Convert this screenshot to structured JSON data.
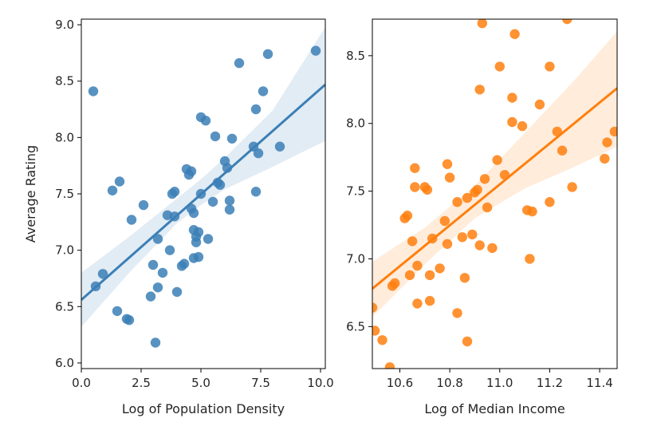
{
  "chart_data": [
    {
      "type": "scatter",
      "xlabel": "Log of Population Density",
      "ylabel": "Average Rating",
      "xlim": [
        0,
        10.2
      ],
      "ylim": [
        5.95,
        9.05
      ],
      "xticks": [
        0.0,
        2.5,
        5.0,
        7.5,
        10.0
      ],
      "xtick_labels": [
        "0.0",
        "2.5",
        "5.0",
        "7.5",
        "10.0"
      ],
      "yticks": [
        6.0,
        6.5,
        7.0,
        7.5,
        8.0,
        8.5,
        9.0
      ],
      "ytick_labels": [
        "6.0",
        "6.5",
        "7.0",
        "7.5",
        "8.0",
        "8.5",
        "9.0"
      ],
      "color": "#3b7fb6",
      "regression": {
        "x0": 0.0,
        "y0": 6.56,
        "x1": 10.2,
        "y1": 8.47
      },
      "ci_band": {
        "x": [
          0,
          2,
          4,
          5,
          6,
          8,
          10.2
        ],
        "lower": [
          6.32,
          6.8,
          7.24,
          7.4,
          7.54,
          7.74,
          7.97
        ],
        "upper": [
          6.8,
          7.12,
          7.46,
          7.63,
          7.82,
          8.24,
          8.98
        ]
      },
      "points": [
        [
          0.5,
          8.41
        ],
        [
          0.6,
          6.68
        ],
        [
          0.9,
          6.79
        ],
        [
          1.3,
          7.53
        ],
        [
          1.6,
          7.61
        ],
        [
          1.5,
          6.46
        ],
        [
          1.9,
          6.39
        ],
        [
          2.0,
          6.38
        ],
        [
          2.1,
          7.27
        ],
        [
          2.6,
          7.4
        ],
        [
          2.9,
          6.59
        ],
        [
          3.0,
          6.87
        ],
        [
          3.1,
          6.18
        ],
        [
          3.2,
          7.1
        ],
        [
          3.2,
          6.67
        ],
        [
          3.4,
          6.8
        ],
        [
          3.6,
          7.31
        ],
        [
          3.7,
          7.0
        ],
        [
          3.8,
          7.5
        ],
        [
          3.9,
          7.52
        ],
        [
          3.9,
          7.3
        ],
        [
          4.0,
          6.63
        ],
        [
          4.2,
          6.86
        ],
        [
          4.3,
          6.88
        ],
        [
          4.4,
          7.72
        ],
        [
          4.5,
          7.67
        ],
        [
          4.6,
          7.7
        ],
        [
          4.6,
          7.37
        ],
        [
          4.7,
          7.18
        ],
        [
          4.7,
          7.33
        ],
        [
          4.7,
          6.93
        ],
        [
          4.8,
          7.12
        ],
        [
          4.8,
          7.07
        ],
        [
          4.9,
          6.94
        ],
        [
          4.9,
          7.16
        ],
        [
          5.0,
          7.5
        ],
        [
          5.0,
          8.18
        ],
        [
          5.2,
          8.15
        ],
        [
          5.3,
          7.1
        ],
        [
          5.5,
          7.43
        ],
        [
          5.6,
          8.01
        ],
        [
          5.7,
          7.6
        ],
        [
          5.8,
          7.58
        ],
        [
          6.0,
          7.79
        ],
        [
          6.1,
          7.73
        ],
        [
          6.2,
          7.44
        ],
        [
          6.2,
          7.36
        ],
        [
          6.3,
          7.99
        ],
        [
          6.6,
          8.66
        ],
        [
          7.2,
          7.92
        ],
        [
          7.3,
          8.25
        ],
        [
          7.3,
          7.52
        ],
        [
          7.4,
          7.86
        ],
        [
          7.6,
          8.41
        ],
        [
          7.8,
          8.74
        ],
        [
          8.3,
          7.92
        ],
        [
          9.8,
          8.77
        ]
      ]
    },
    {
      "type": "scatter",
      "xlabel": "Log of Median Income",
      "ylabel": "",
      "xlim": [
        10.49,
        11.47
      ],
      "ylim": [
        6.19,
        8.77
      ],
      "xticks": [
        10.6,
        10.8,
        11.0,
        11.2,
        11.4
      ],
      "xtick_labels": [
        "10.6",
        "10.8",
        "11.0",
        "11.2",
        "11.4"
      ],
      "yticks": [
        6.5,
        7.0,
        7.5,
        8.0,
        8.5
      ],
      "ytick_labels": [
        "6.5",
        "7.0",
        "7.5",
        "8.0",
        "8.5"
      ],
      "color": "#ff7f0e",
      "regression": {
        "x0": 10.49,
        "y0": 6.78,
        "x1": 11.47,
        "y1": 8.26
      },
      "ci_band": {
        "x": [
          10.49,
          10.7,
          10.9,
          11.1,
          11.3,
          11.47
        ],
        "lower": [
          6.57,
          6.96,
          7.3,
          7.52,
          7.68,
          7.83
        ],
        "upper": [
          6.98,
          7.23,
          7.54,
          7.93,
          8.32,
          8.68
        ]
      },
      "points": [
        [
          10.49,
          6.64
        ],
        [
          10.5,
          6.47
        ],
        [
          10.53,
          6.4
        ],
        [
          10.56,
          6.2
        ],
        [
          10.57,
          6.8
        ],
        [
          10.58,
          6.82
        ],
        [
          10.62,
          7.3
        ],
        [
          10.63,
          7.32
        ],
        [
          10.64,
          6.88
        ],
        [
          10.65,
          7.13
        ],
        [
          10.66,
          7.67
        ],
        [
          10.66,
          7.53
        ],
        [
          10.67,
          6.67
        ],
        [
          10.67,
          6.95
        ],
        [
          10.7,
          7.53
        ],
        [
          10.71,
          7.51
        ],
        [
          10.72,
          6.69
        ],
        [
          10.72,
          6.88
        ],
        [
          10.73,
          7.15
        ],
        [
          10.76,
          6.93
        ],
        [
          10.78,
          7.28
        ],
        [
          10.79,
          7.11
        ],
        [
          10.79,
          7.7
        ],
        [
          10.8,
          7.6
        ],
        [
          10.83,
          6.6
        ],
        [
          10.83,
          7.42
        ],
        [
          10.85,
          7.16
        ],
        [
          10.86,
          6.86
        ],
        [
          10.87,
          7.45
        ],
        [
          10.87,
          6.39
        ],
        [
          10.89,
          7.18
        ],
        [
          10.9,
          7.49
        ],
        [
          10.91,
          7.51
        ],
        [
          10.92,
          7.1
        ],
        [
          10.92,
          8.25
        ],
        [
          10.93,
          8.74
        ],
        [
          10.94,
          7.59
        ],
        [
          10.95,
          7.38
        ],
        [
          10.97,
          7.08
        ],
        [
          10.99,
          7.73
        ],
        [
          11.0,
          8.42
        ],
        [
          11.02,
          7.62
        ],
        [
          11.05,
          8.19
        ],
        [
          11.05,
          8.01
        ],
        [
          11.06,
          8.66
        ],
        [
          11.09,
          7.98
        ],
        [
          11.11,
          7.36
        ],
        [
          11.12,
          7.0
        ],
        [
          11.13,
          7.35
        ],
        [
          11.16,
          8.14
        ],
        [
          11.2,
          7.42
        ],
        [
          11.2,
          8.42
        ],
        [
          11.23,
          7.94
        ],
        [
          11.25,
          7.8
        ],
        [
          11.27,
          8.77
        ],
        [
          11.29,
          7.53
        ],
        [
          11.42,
          7.74
        ],
        [
          11.43,
          7.86
        ],
        [
          11.46,
          7.94
        ]
      ]
    }
  ]
}
